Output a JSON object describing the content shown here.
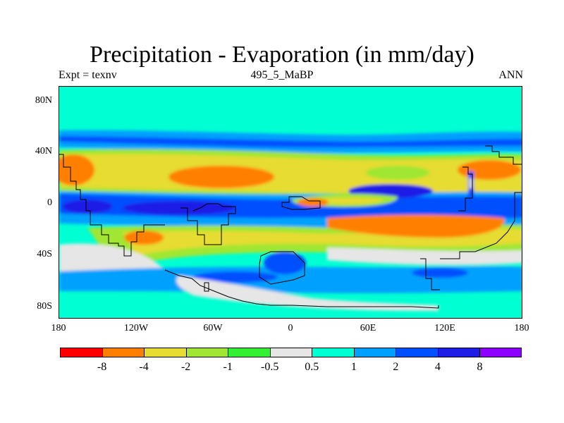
{
  "title": "Precipitation - Evaporation (in mm/day)",
  "subtitle_left": "Expt = texnv",
  "subtitle_center": "495_5_MaBP",
  "subtitle_right": "ANN",
  "lat_labels": [
    "80N",
    "40N",
    "0",
    "40S",
    "80S"
  ],
  "lon_labels": [
    "180",
    "120W",
    "60W",
    "0",
    "60E",
    "120E",
    "180"
  ],
  "colorbar": {
    "colors": [
      "#ff0000",
      "#ff8000",
      "#e6dc32",
      "#a0e632",
      "#32f032",
      "#e6e6e6",
      "#00ffd2",
      "#00a0ff",
      "#0050ff",
      "#1e1ee6",
      "#8c00ff"
    ],
    "labels": [
      "-8",
      "-4",
      "-2",
      "-1",
      "-0.5",
      "0.5",
      "1",
      "2",
      "4",
      "8"
    ]
  }
}
